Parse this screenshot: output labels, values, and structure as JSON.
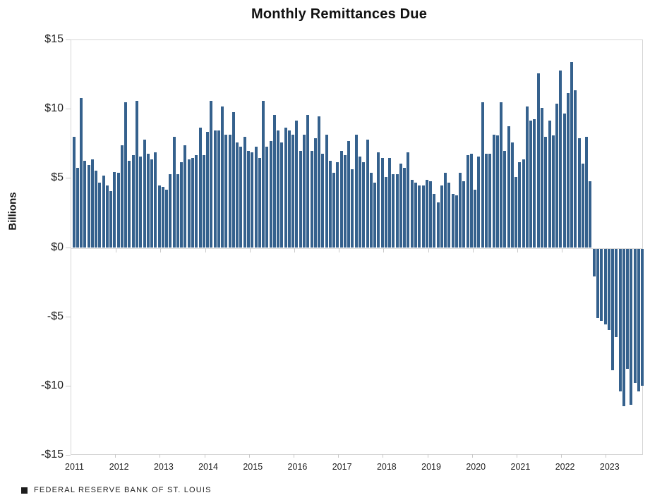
{
  "chart_data": {
    "type": "bar",
    "title": "Monthly Remittances Due",
    "ylabel": "Billions",
    "xlabel": "",
    "x_unit": "month",
    "x_start": "2011-01",
    "x_end": "2023-10",
    "values": [
      8.0,
      5.8,
      10.8,
      6.3,
      6.0,
      6.4,
      5.6,
      4.7,
      5.2,
      4.5,
      4.1,
      5.5,
      5.4,
      7.4,
      10.5,
      6.3,
      6.7,
      10.6,
      6.6,
      7.8,
      6.8,
      6.4,
      6.9,
      4.5,
      4.4,
      4.2,
      5.3,
      8.0,
      5.3,
      6.2,
      7.4,
      6.4,
      6.5,
      6.7,
      8.7,
      6.7,
      8.4,
      10.6,
      8.5,
      8.5,
      10.2,
      8.2,
      8.2,
      9.8,
      7.6,
      7.3,
      8.0,
      7.0,
      6.9,
      7.3,
      6.5,
      10.6,
      7.3,
      7.7,
      9.6,
      8.5,
      7.6,
      8.7,
      8.5,
      8.2,
      9.2,
      7.0,
      8.2,
      9.6,
      7.0,
      7.9,
      9.5,
      6.8,
      8.2,
      6.3,
      5.4,
      6.2,
      7.0,
      6.7,
      7.7,
      5.7,
      8.2,
      6.6,
      6.2,
      7.8,
      5.4,
      4.7,
      6.9,
      6.5,
      5.1,
      6.5,
      5.3,
      5.3,
      6.1,
      5.8,
      6.9,
      4.9,
      4.7,
      4.5,
      4.5,
      4.9,
      4.8,
      3.9,
      3.3,
      4.5,
      5.4,
      4.7,
      3.9,
      3.8,
      5.4,
      4.8,
      6.7,
      6.8,
      4.2,
      6.6,
      10.5,
      6.8,
      6.8,
      8.2,
      8.1,
      10.5,
      7.0,
      8.8,
      7.6,
      5.1,
      6.2,
      6.4,
      10.2,
      9.2,
      9.3,
      12.6,
      10.1,
      8.0,
      9.2,
      8.1,
      10.4,
      12.8,
      9.7,
      11.2,
      13.4,
      11.4,
      7.9,
      6.1,
      8.0,
      4.8,
      -2.0,
      -5.0,
      -5.2,
      -5.5,
      -5.9,
      -8.8,
      -6.4,
      -10.3,
      -11.4,
      -8.7,
      -11.3,
      -9.7,
      -10.3,
      -9.9
    ],
    "x_tick_labels": [
      "2011",
      "2012",
      "2013",
      "2014",
      "2015",
      "2016",
      "2017",
      "2018",
      "2019",
      "2020",
      "2021",
      "2022",
      "2023"
    ],
    "y_tick_labels": [
      "$15",
      "$10",
      "$5",
      "$0",
      "-$5",
      "-$10",
      "-$15"
    ],
    "y_tick_values": [
      15,
      10,
      5,
      0,
      -5,
      -10,
      -15
    ],
    "ylim": [
      -15,
      15
    ],
    "bar_color": "#35618d",
    "grid": "zero-line-only",
    "legend": "none",
    "source_label": "FEDERAL RESERVE BANK OF ST. LOUIS"
  }
}
